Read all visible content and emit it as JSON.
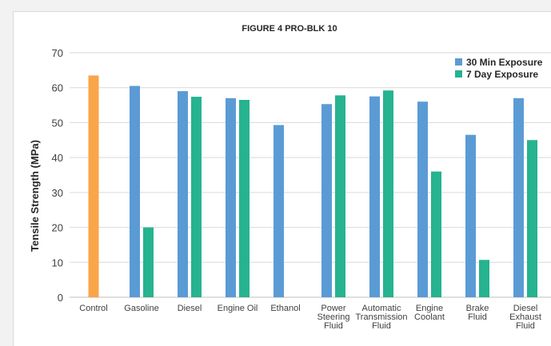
{
  "chart_data": {
    "type": "bar",
    "title": "FIGURE 4 PRO-BLK 10",
    "ylabel": "Tensile Strength (MPa)",
    "xlabel": "",
    "ylim": [
      0,
      70
    ],
    "yticks": [
      0,
      10,
      20,
      30,
      40,
      50,
      60,
      70
    ],
    "grid": true,
    "legend_position": "top-right",
    "categories": [
      [
        "Control"
      ],
      [
        "Gasoline"
      ],
      [
        "Diesel"
      ],
      [
        "Engine Oil"
      ],
      [
        "Ethanol"
      ],
      [
        "Power",
        "Steering",
        "Fluid"
      ],
      [
        "Automatic",
        "Transmission",
        "Fluid"
      ],
      [
        "Engine",
        "Coolant"
      ],
      [
        "Brake",
        "Fluid"
      ],
      [
        "Diesel",
        "Exhaust",
        "Fluid"
      ]
    ],
    "control": {
      "value": 63.5,
      "color": "#f9a54a"
    },
    "series": [
      {
        "name": "30 Min Exposure",
        "color": "#5b9bd5",
        "values": [
          null,
          60.5,
          59,
          57,
          49.3,
          55.3,
          57.5,
          56,
          46.5,
          57
        ]
      },
      {
        "name": "7 Day Exposure",
        "color": "#26b38f",
        "values": [
          null,
          20,
          57.4,
          56.5,
          null,
          57.8,
          59.2,
          36,
          10.7,
          45
        ]
      }
    ]
  }
}
